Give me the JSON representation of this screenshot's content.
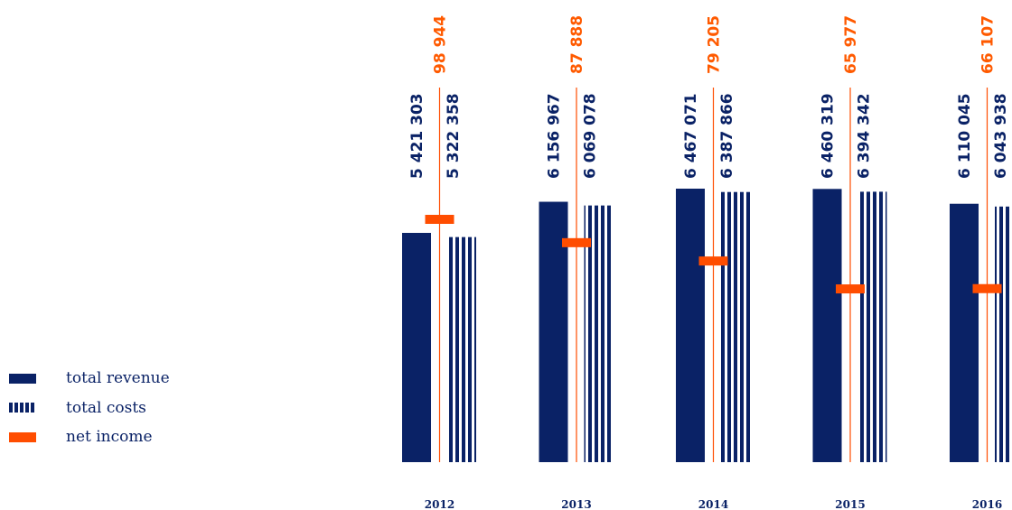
{
  "colors": {
    "revenue": "#0a2266",
    "costs": "#0a2266",
    "net": "#ff4d00",
    "net_text": "#ff5a00",
    "value_text": "#0a2266",
    "year_text": "#0a2266",
    "legend_text": "#0a2266"
  },
  "legend": {
    "revenue_label": "total revenue",
    "costs_label": "total costs",
    "net_label": "net income"
  },
  "chart_data": {
    "type": "bar",
    "categories": [
      "2012",
      "2013",
      "2014",
      "2015",
      "2016"
    ],
    "series": [
      {
        "name": "total revenue",
        "values": [
          5421303,
          6156967,
          6467071,
          6460319,
          6110045
        ]
      },
      {
        "name": "total costs",
        "values": [
          5322358,
          6069078,
          6387866,
          6394342,
          6043938
        ]
      },
      {
        "name": "net income",
        "values": [
          98944,
          87888,
          79205,
          65977,
          66107
        ]
      }
    ],
    "value_labels": {
      "revenue": [
        "5 421 303",
        "6 156 967",
        "6 467 071",
        "6 460 319",
        "6 110 045"
      ],
      "costs": [
        "5 322 358",
        "6 069 078",
        "6 387 866",
        "6 394 342",
        "6 043 938"
      ],
      "net": [
        "98 944",
        "87 888",
        "79 205",
        "65 977",
        "66 107"
      ]
    },
    "title": "",
    "xlabel": "",
    "ylabel": "",
    "grid": false,
    "legend_position": "left"
  }
}
